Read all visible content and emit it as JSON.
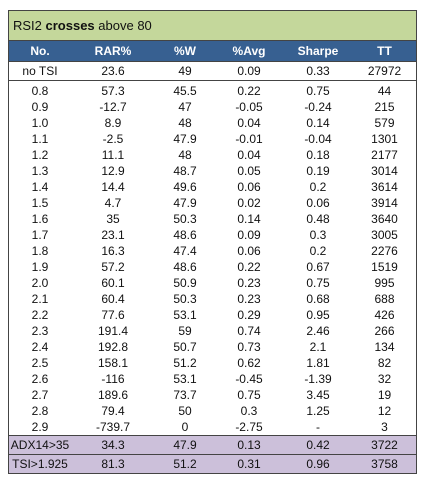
{
  "title": {
    "part1": "RSI2 ",
    "bold": "crosses",
    "part2": " above 80"
  },
  "columns": [
    "No.",
    "RAR%",
    "%W",
    "%Avg",
    "Sharpe",
    "TT"
  ],
  "reference_row": [
    "no TSI",
    "23.6",
    "49",
    "0.09",
    "0.33",
    "27972"
  ],
  "rows": [
    [
      "0.8",
      "57.3",
      "45.5",
      "0.22",
      "0.75",
      "44"
    ],
    [
      "0.9",
      "-12.7",
      "47",
      "-0.05",
      "-0.24",
      "215"
    ],
    [
      "1.0",
      "8.9",
      "48",
      "0.04",
      "0.14",
      "579"
    ],
    [
      "1.1",
      "-2.5",
      "47.9",
      "-0.01",
      "-0.04",
      "1301"
    ],
    [
      "1.2",
      "11.1",
      "48",
      "0.04",
      "0.18",
      "2177"
    ],
    [
      "1.3",
      "12.9",
      "48.7",
      "0.05",
      "0.19",
      "3014"
    ],
    [
      "1.4",
      "14.4",
      "49.6",
      "0.06",
      "0.2",
      "3614"
    ],
    [
      "1.5",
      "4.7",
      "47.9",
      "0.02",
      "0.06",
      "3914"
    ],
    [
      "1.6",
      "35",
      "50.3",
      "0.14",
      "0.48",
      "3640"
    ],
    [
      "1.7",
      "23.1",
      "48.6",
      "0.09",
      "0.3",
      "3005"
    ],
    [
      "1.8",
      "16.3",
      "47.4",
      "0.06",
      "0.2",
      "2276"
    ],
    [
      "1.9",
      "57.2",
      "48.6",
      "0.22",
      "0.67",
      "1519"
    ],
    [
      "2.0",
      "60.1",
      "50.9",
      "0.23",
      "0.75",
      "995"
    ],
    [
      "2.1",
      "60.4",
      "50.3",
      "0.23",
      "0.68",
      "688"
    ],
    [
      "2.2",
      "77.6",
      "53.1",
      "0.29",
      "0.95",
      "426"
    ],
    [
      "2.3",
      "191.4",
      "59",
      "0.74",
      "2.46",
      "266"
    ],
    [
      "2.4",
      "192.8",
      "50.7",
      "0.73",
      "2.1",
      "134"
    ],
    [
      "2.5",
      "158.1",
      "51.2",
      "0.62",
      "1.81",
      "82"
    ],
    [
      "2.6",
      "-116",
      "53.1",
      "-0.45",
      "-1.39",
      "32"
    ],
    [
      "2.7",
      "189.6",
      "73.7",
      "0.75",
      "3.45",
      "19"
    ],
    [
      "2.8",
      "79.4",
      "50",
      "0.3",
      "1.25",
      "12"
    ],
    [
      "2.9",
      "-739.7",
      "0",
      "-2.75",
      "-",
      "3"
    ]
  ],
  "summary_rows": [
    [
      "ADX14>35",
      "34.3",
      "47.9",
      "0.13",
      "0.42",
      "3722"
    ],
    [
      "TSI>1.925",
      "81.3",
      "51.2",
      "0.31",
      "0.96",
      "3758"
    ]
  ],
  "colors": {
    "title_background": "#c4d79b",
    "header_background": "#376091",
    "summary_background": "#ccc0da"
  }
}
